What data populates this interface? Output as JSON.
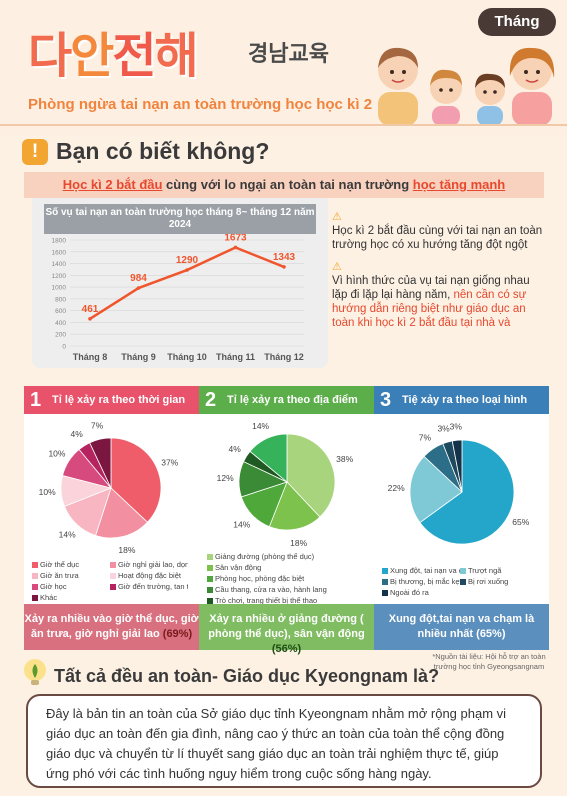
{
  "header": {
    "logo_parts": [
      "다",
      "안",
      "전",
      "해"
    ],
    "logo_sub": "경남교육",
    "month_badge": "Tháng",
    "subtitle": "Phòng ngừa tai nạn an toàn trường học học kì 2"
  },
  "section1": {
    "icon": "!",
    "title": "Bạn có biết không?",
    "banner_pre": "Học kì 2 bắt đầu",
    "banner_mid": " cùng với lo ngại an toàn tai nạn trường ",
    "banner_post": "học tăng mạnh",
    "notes": {
      "p1": "Học kì 2 bắt đầu cùng với tai  nạn an toàn trường học có xu hướng tăng đột ngột",
      "p2_pre": "Vì hình thức của vụ tai nạn giống nhau lặp đi lặp lại hàng năm, ",
      "p2_hl": "nên cần có sự hướng dẫn riêng biệt như giáo dục an toàn khi học kì 2 bắt đầu tại nhà và"
    }
  },
  "chart_data": [
    {
      "type": "line",
      "title": "Số vụ tai nạn an toàn trường học tháng 8~ tháng 12 năm 2024",
      "categories": [
        "Tháng 8",
        "Tháng 9",
        "Tháng 10",
        "Tháng 11",
        "Tháng 12"
      ],
      "values": [
        461,
        984,
        1290,
        1673,
        1343
      ],
      "ylim": [
        0,
        1800
      ],
      "yticks": [
        0,
        200,
        400,
        600,
        800,
        1000,
        1200,
        1400,
        1600,
        1800
      ],
      "grid": true,
      "color": "#f0562e"
    },
    {
      "type": "pie",
      "title": "Tỉ lệ xảy ra theo thời gian",
      "series": [
        {
          "name": "Giờ thể dục",
          "value": 37,
          "label": "37%",
          "color": "#ef5d6a"
        },
        {
          "name": "Giờ nghỉ giải lao, dọn dẹp",
          "value": 18,
          "label": "18%",
          "color": "#f28fa0"
        },
        {
          "name": "Giờ ăn trưa",
          "value": 14,
          "label": "14%",
          "color": "#f7b6c2"
        },
        {
          "name": "Hoạt động đặc biệt",
          "value": 10,
          "label": "10%",
          "color": "#fbd3da"
        },
        {
          "name": "Giờ học",
          "value": 10,
          "label": "10%",
          "color": "#d64a7d"
        },
        {
          "name": "Giờ đến trường, tan trường",
          "value": 4,
          "label": "4%",
          "color": "#b5245e"
        },
        {
          "name": "Khác",
          "value": 7,
          "label": "7%",
          "color": "#7b1640"
        }
      ]
    },
    {
      "type": "pie",
      "title": "Tỉ lệ xảy ra theo địa điểm",
      "series": [
        {
          "name": "Giảng đường (phòng thể dục)",
          "value": 38,
          "label": "38%",
          "color": "#a9d47e"
        },
        {
          "name": "Sân vận động",
          "value": 18,
          "label": "18%",
          "color": "#7dc24d"
        },
        {
          "name": "Phòng học, phòng đặc biệt",
          "value": 14,
          "label": "14%",
          "color": "#4fa83a"
        },
        {
          "name": "Cầu thang, cửa ra vào, hành lang",
          "value": 12,
          "label": "12%",
          "color": "#3b8a35"
        },
        {
          "name": "Trò chơi, trang thiết bị thể thao",
          "value": 4,
          "label": "4%",
          "color": "#1f5a22"
        },
        {
          "name": "Khác",
          "value": 14,
          "label": "14%",
          "color": "#36b35a"
        }
      ]
    },
    {
      "type": "pie",
      "title": "Tiệ xảy ra theo loại hình",
      "series": [
        {
          "name": "Xung đột, tai nạn va chạm",
          "value": 65,
          "label": "65%",
          "color": "#23a6c9"
        },
        {
          "name": "Trượt ngã",
          "value": 22,
          "label": "22%",
          "color": "#7fc8d6"
        },
        {
          "name": "Bị thương, bị mắc kẹt, bị đâm",
          "value": 7,
          "label": "7%",
          "color": "#2c6e88"
        },
        {
          "name": "Bị rơi xuống",
          "value": 3,
          "label": "3%",
          "color": "#1d4a5f"
        },
        {
          "name": "Ngoài đó ra",
          "value": 3,
          "label": "3%",
          "color": "#14334a"
        }
      ]
    }
  ],
  "cards": [
    {
      "num": "1",
      "title": "Tỉ lệ xảy ra theo thời gian",
      "footer_pre": "Xảy ra nhiều vào ",
      "footer_hl": "giờ thể dục, giờ ăn trưa, giờ nghỉ giải lao",
      "footer_post": " (69%)",
      "head_color": "#e8536b",
      "foot_color": "#d8707f"
    },
    {
      "num": "2",
      "title": "Tỉ lệ xảy ra theo địa điểm",
      "footer_pre": "Xảy ra nhiều ở ",
      "footer_hl": "giảng đường ( phòng thể dục), sân vận động",
      "footer_post": " (56%)",
      "head_color": "#5cae4a",
      "foot_color": "#80bd62"
    },
    {
      "num": "3",
      "title": "Tiệ xảy ra theo loại hình",
      "footer_pre": "Xung đột,tai nạn va chạm ",
      "footer_hl": "là nhiều nhất",
      "footer_post": " (65%)",
      "head_color": "#3b7fb8",
      "foot_color": "#5b8fbd"
    }
  ],
  "source": "*Nguồn tài liệu: Hội hỗ trợ an toàn trường học tỉnh Gyeongsangnam",
  "section2": {
    "title": "Tất cả đều an toàn- Giáo dục Kyeongnam là?",
    "body": "Đây là bản tin an toàn của Sở giáo dục tỉnh Kyeongnam nhằm mở rộng phạm vi giáo dục an toàn đến gia đình, nâng cao ý thức an toàn của toàn thể cộng đồng giáo dục và chuyển từ lí thuyết sang giáo dục an toàn trải nghiệm thực tế, giúp ứng phó với các tình huống nguy hiểm trong cuộc sống hàng ngày."
  },
  "icons": {
    "warning": "warning-icon",
    "alert": "exclamation-icon",
    "bulb": "lightbulb-icon",
    "family": "family-illustration"
  }
}
